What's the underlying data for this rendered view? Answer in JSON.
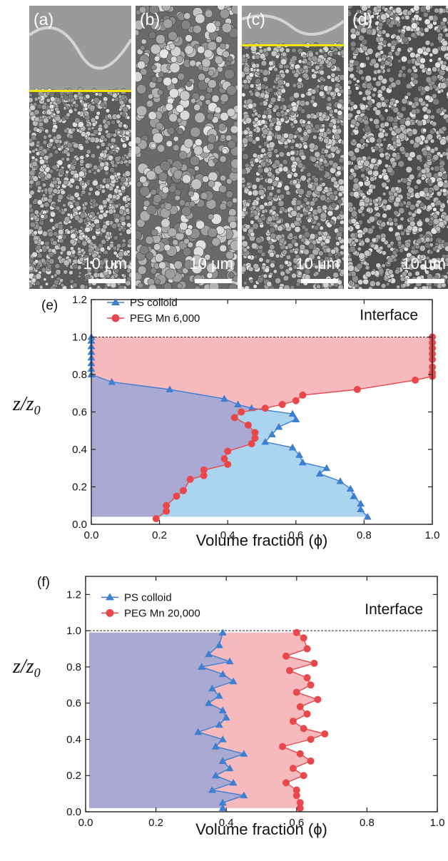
{
  "figure_panels": [
    {
      "label": "(a)",
      "scale_bar": "10 μm",
      "texture": "dense-small-particles",
      "interface_line": true
    },
    {
      "label": "(b)",
      "scale_bar": "10 μm",
      "texture": "coated-continuous",
      "interface_line": false
    },
    {
      "label": "(c)",
      "scale_bar": "10 μm",
      "texture": "packed-particles",
      "interface_line": true
    },
    {
      "label": "(d)",
      "scale_bar": "10 μm",
      "texture": "porous-particles",
      "interface_line": false
    }
  ],
  "colors": {
    "ps_series": "#3f7fcf",
    "peg_series": "#e8484b",
    "ps_fill": "#aad4ef",
    "peg_fill": "#f6b9be",
    "overlap_fill": "#aaa9d3",
    "interface_line": "#f2e200"
  },
  "chart_data": [
    {
      "panel_label": "(e)",
      "type": "line",
      "xlabel": "Volume fraction (ϕ)",
      "ylabel": "z/z0",
      "xlim": [
        0,
        1.0
      ],
      "ylim": [
        0,
        1.2
      ],
      "xticks": [
        "0.0",
        "0.2",
        "0.4",
        "0.6",
        "0.8",
        "1.0"
      ],
      "yticks": [
        "0.0",
        "0.2",
        "0.4",
        "0.6",
        "0.8",
        "1.0",
        "1.2"
      ],
      "annotation": "Interface",
      "reference_line_y": 1.0,
      "legend_position": "top-left",
      "series": [
        {
          "name": "PS colloid",
          "marker": "triangle",
          "points": [
            [
              0,
              1.0
            ],
            [
              0,
              0.98
            ],
            [
              0,
              0.95
            ],
            [
              0,
              0.92
            ],
            [
              0,
              0.89
            ],
            [
              0,
              0.86
            ],
            [
              0,
              0.83
            ],
            [
              0,
              0.8
            ],
            [
              0.06,
              0.76
            ],
            [
              0.23,
              0.72
            ],
            [
              0.39,
              0.67
            ],
            [
              0.43,
              0.64
            ],
            [
              0.47,
              0.62
            ],
            [
              0.59,
              0.59
            ],
            [
              0.6,
              0.56
            ],
            [
              0.55,
              0.52
            ],
            [
              0.53,
              0.48
            ],
            [
              0.51,
              0.44
            ],
            [
              0.59,
              0.41
            ],
            [
              0.61,
              0.37
            ],
            [
              0.62,
              0.33
            ],
            [
              0.69,
              0.3
            ],
            [
              0.67,
              0.27
            ],
            [
              0.73,
              0.23
            ],
            [
              0.76,
              0.19
            ],
            [
              0.77,
              0.15
            ],
            [
              0.79,
              0.11
            ],
            [
              0.79,
              0.08
            ],
            [
              0.81,
              0.04
            ]
          ]
        },
        {
          "name": "PEG Mn 6,000",
          "marker": "circle",
          "points": [
            [
              1.0,
              1.0
            ],
            [
              1.0,
              0.97
            ],
            [
              1.0,
              0.94
            ],
            [
              1.0,
              0.91
            ],
            [
              1.0,
              0.88
            ],
            [
              1.0,
              0.84
            ],
            [
              1.0,
              0.81
            ],
            [
              1.0,
              0.79
            ],
            [
              0.95,
              0.77
            ],
            [
              0.78,
              0.72
            ],
            [
              0.62,
              0.69
            ],
            [
              0.6,
              0.66
            ],
            [
              0.56,
              0.64
            ],
            [
              0.51,
              0.62
            ],
            [
              0.44,
              0.6
            ],
            [
              0.42,
              0.57
            ],
            [
              0.46,
              0.53
            ],
            [
              0.48,
              0.49
            ],
            [
              0.48,
              0.46
            ],
            [
              0.47,
              0.43
            ],
            [
              0.4,
              0.39
            ],
            [
              0.39,
              0.35
            ],
            [
              0.4,
              0.32
            ],
            [
              0.33,
              0.29
            ],
            [
              0.33,
              0.26
            ],
            [
              0.29,
              0.24
            ],
            [
              0.27,
              0.18
            ],
            [
              0.25,
              0.15
            ],
            [
              0.22,
              0.1
            ],
            [
              0.22,
              0.07
            ],
            [
              0.19,
              0.03
            ]
          ]
        }
      ]
    },
    {
      "panel_label": "(f)",
      "type": "line",
      "xlabel": "Volume fraction (ϕ)",
      "ylabel": "z/z0",
      "xlim": [
        0,
        1.0
      ],
      "ylim": [
        0,
        1.3
      ],
      "xticks": [
        "0.0",
        "0.2",
        "0.4",
        "0.6",
        "0.8",
        "1.0"
      ],
      "yticks": [
        "0.0",
        "0.2",
        "0.4",
        "0.6",
        "0.8",
        "1.0",
        "1.2"
      ],
      "annotation": "Interface",
      "reference_line_y": 1.0,
      "legend_position": "top-left",
      "series": [
        {
          "name": "PS colloid",
          "marker": "triangle",
          "points": [
            [
              0.39,
              0.99
            ],
            [
              0.38,
              0.92
            ],
            [
              0.35,
              0.87
            ],
            [
              0.41,
              0.83
            ],
            [
              0.33,
              0.8
            ],
            [
              0.39,
              0.76
            ],
            [
              0.42,
              0.72
            ],
            [
              0.36,
              0.68
            ],
            [
              0.38,
              0.64
            ],
            [
              0.35,
              0.6
            ],
            [
              0.39,
              0.56
            ],
            [
              0.4,
              0.52
            ],
            [
              0.38,
              0.48
            ],
            [
              0.32,
              0.44
            ],
            [
              0.39,
              0.4
            ],
            [
              0.37,
              0.36
            ],
            [
              0.45,
              0.32
            ],
            [
              0.39,
              0.28
            ],
            [
              0.41,
              0.24
            ],
            [
              0.37,
              0.2
            ],
            [
              0.42,
              0.16
            ],
            [
              0.36,
              0.12
            ],
            [
              0.45,
              0.09
            ],
            [
              0.39,
              0.05
            ],
            [
              0.39,
              0.02
            ]
          ]
        },
        {
          "name": "PEG Mn 20,000",
          "marker": "circle",
          "points": [
            [
              0.6,
              0.99
            ],
            [
              0.62,
              0.96
            ],
            [
              0.63,
              0.9
            ],
            [
              0.57,
              0.86
            ],
            [
              0.65,
              0.82
            ],
            [
              0.58,
              0.78
            ],
            [
              0.63,
              0.74
            ],
            [
              0.64,
              0.7
            ],
            [
              0.6,
              0.66
            ],
            [
              0.66,
              0.62
            ],
            [
              0.61,
              0.58
            ],
            [
              0.63,
              0.54
            ],
            [
              0.59,
              0.5
            ],
            [
              0.62,
              0.46
            ],
            [
              0.68,
              0.43
            ],
            [
              0.64,
              0.4
            ],
            [
              0.56,
              0.36
            ],
            [
              0.61,
              0.32
            ],
            [
              0.64,
              0.28
            ],
            [
              0.59,
              0.24
            ],
            [
              0.62,
              0.2
            ],
            [
              0.57,
              0.16
            ],
            [
              0.6,
              0.12
            ],
            [
              0.6,
              0.09
            ],
            [
              0.61,
              0.05
            ],
            [
              0.61,
              0.02
            ]
          ]
        }
      ]
    }
  ]
}
